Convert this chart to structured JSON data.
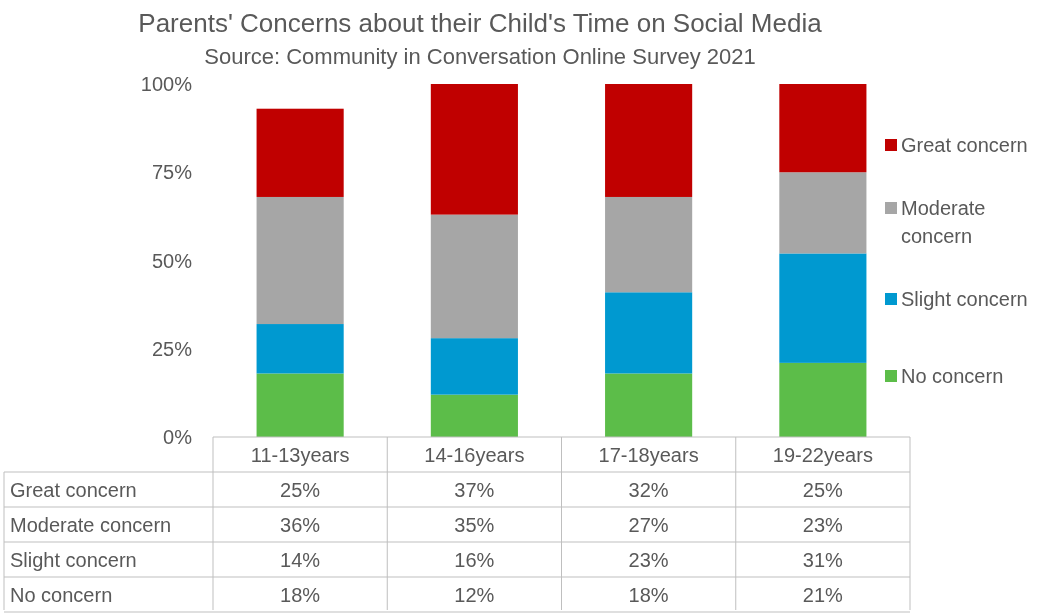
{
  "chart_data": {
    "type": "bar",
    "stacked": true,
    "title": "Parents' Concerns about their Child's Time on Social Media",
    "subtitle": "Source: Community in Conversation Online Survey 2021",
    "categories": [
      "11-13years",
      "14-16years",
      "17-18years",
      "19-22years"
    ],
    "series": [
      {
        "name": "No concern",
        "color": "#5cbd49",
        "values": [
          18,
          12,
          18,
          21
        ],
        "value_labels": [
          "18%",
          "12%",
          "18%",
          "21%"
        ]
      },
      {
        "name": "Slight concern",
        "color": "#0099d0",
        "values": [
          14,
          16,
          23,
          31
        ],
        "value_labels": [
          "14%",
          "16%",
          "23%",
          "31%"
        ]
      },
      {
        "name": "Moderate concern",
        "color": "#a6a6a6",
        "values": [
          36,
          35,
          27,
          23
        ],
        "value_labels": [
          "36%",
          "35%",
          "27%",
          "23%"
        ]
      },
      {
        "name": "Great concern",
        "color": "#c00000",
        "values": [
          25,
          37,
          32,
          25
        ],
        "value_labels": [
          "25%",
          "37%",
          "32%",
          "25%"
        ]
      }
    ],
    "ylim": [
      0,
      100
    ],
    "yticks": [
      {
        "value": 0,
        "label": "0%"
      },
      {
        "value": 25,
        "label": "25%"
      },
      {
        "value": 50,
        "label": "50%"
      },
      {
        "value": 75,
        "label": "75%"
      },
      {
        "value": 100,
        "label": "100%"
      }
    ],
    "legend": "right"
  }
}
